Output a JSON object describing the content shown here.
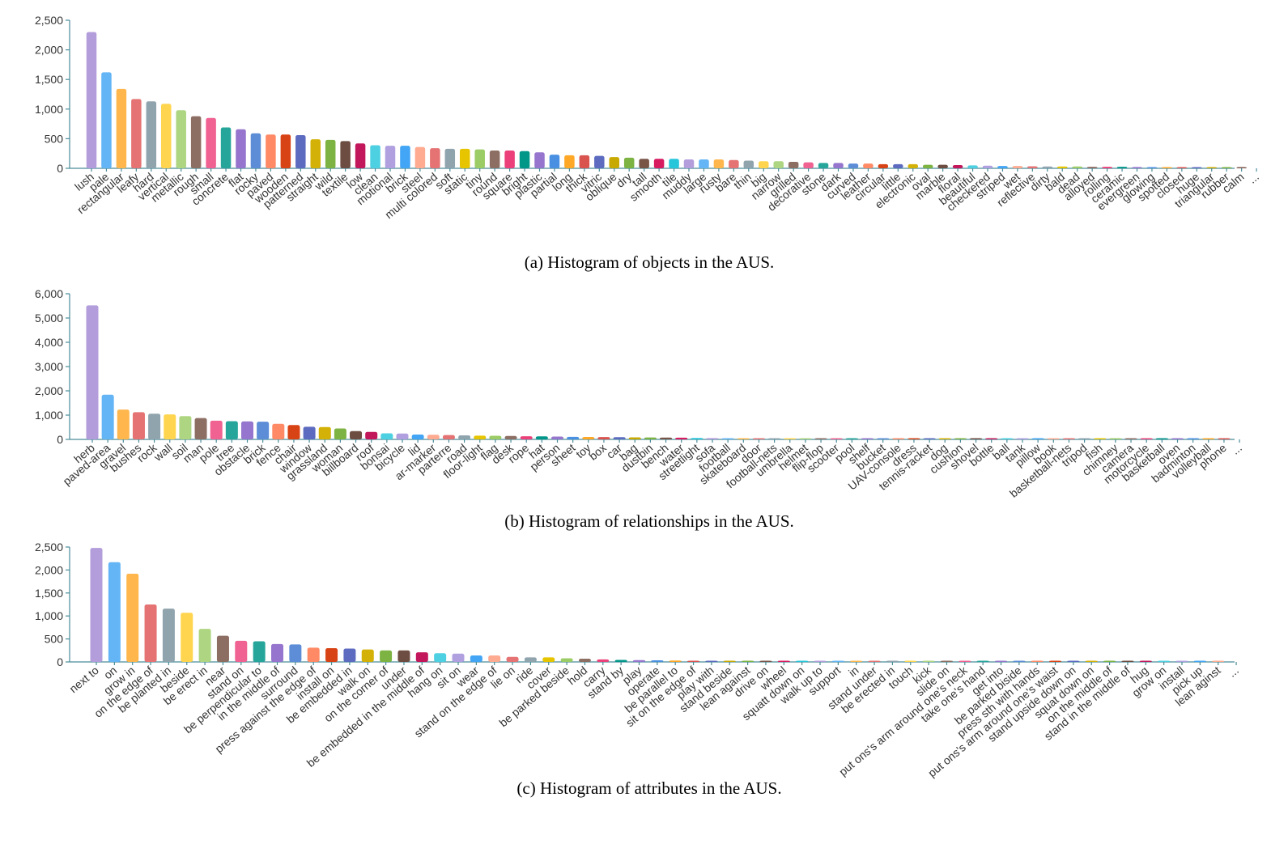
{
  "chart_data": [
    {
      "type": "bar",
      "caption": "(a) Histogram of objects in the AUS.",
      "ylim": [
        0,
        2500
      ],
      "ytick_labels": [
        "0",
        "500",
        "1,000",
        "1,500",
        "2,000",
        "2,500"
      ],
      "categories": [
        "lush",
        "pale",
        "rectangular",
        "leafy",
        "hard",
        "vertical",
        "metallic",
        "rough",
        "small",
        "concrete",
        "flat",
        "rocky",
        "paved",
        "wooden",
        "patterned",
        "straight",
        "wild",
        "textile",
        "low",
        "clean",
        "motional",
        "brick",
        "steel",
        "multi colored",
        "soft",
        "static",
        "tiny",
        "round",
        "square",
        "bright",
        "plastic",
        "partial",
        "long",
        "thick",
        "vitric",
        "oblique",
        "dry",
        "tall",
        "smooth",
        "tile",
        "muddy",
        "large",
        "rusty",
        "bare",
        "thin",
        "big",
        "narrow",
        "grilled",
        "decorative",
        "stone",
        "dark",
        "curved",
        "leather",
        "circular",
        "little",
        "electronic",
        "oval",
        "marble",
        "floral",
        "beautiful",
        "checkered",
        "striped",
        "wet",
        "reflective",
        "dirty",
        "bald",
        "dead",
        "alloyed",
        "rolling",
        "ceramic",
        "evergreen",
        "glowing",
        "spotted",
        "closed",
        "huge",
        "triangular",
        "rubber",
        "calm",
        "..."
      ],
      "values": [
        2300,
        1620,
        1340,
        1170,
        1130,
        1090,
        980,
        880,
        850,
        690,
        660,
        590,
        570,
        570,
        560,
        490,
        480,
        460,
        420,
        390,
        380,
        380,
        360,
        340,
        330,
        330,
        320,
        300,
        300,
        290,
        270,
        230,
        220,
        220,
        210,
        190,
        180,
        160,
        160,
        160,
        150,
        150,
        150,
        140,
        130,
        120,
        120,
        110,
        100,
        90,
        90,
        80,
        80,
        70,
        70,
        70,
        60,
        60,
        55,
        50,
        45,
        40,
        40,
        35,
        30,
        30,
        30,
        25,
        25,
        25,
        22,
        20,
        18,
        16,
        14,
        12,
        10,
        8,
        0
      ]
    },
    {
      "type": "bar",
      "caption": "(b) Histogram of relationships in the AUS.",
      "ylim": [
        0,
        6000
      ],
      "ytick_labels": [
        "0",
        "1,000",
        "2,000",
        "3,000",
        "4,000",
        "5,000",
        "6,000"
      ],
      "categories": [
        "herb",
        "paved-area",
        "gravel",
        "bushes",
        "rock",
        "wall",
        "soil",
        "man",
        "pole",
        "tree",
        "obstacle",
        "brick",
        "fence",
        "chair",
        "window",
        "grassland",
        "woman",
        "billboard",
        "roof",
        "bonsai",
        "bicycle",
        "lid",
        "ar-marker",
        "parterre",
        "road",
        "floor-light",
        "flag",
        "desk",
        "rope",
        "hat",
        "person",
        "sheet",
        "toy",
        "box",
        "car",
        "bag",
        "dustbin",
        "bench",
        "water",
        "streetlight",
        "sofa",
        "football",
        "skateboard",
        "door",
        "football-nets",
        "umbrella",
        "helmet",
        "flip-flop",
        "scooter",
        "pool",
        "shelf",
        "bucket",
        "UAV-console",
        "dress",
        "tennis-racket",
        "dog",
        "cushion",
        "shovel",
        "bottle",
        "ball",
        "tank",
        "pillow",
        "book",
        "basketball-nets",
        "tripod",
        "fish",
        "chimney",
        "camera",
        "motorcycle",
        "basketball",
        "oven",
        "badminton",
        "volleyball",
        "phone",
        "..."
      ],
      "values": [
        5520,
        1840,
        1230,
        1120,
        1060,
        1030,
        960,
        880,
        770,
        750,
        740,
        730,
        640,
        590,
        520,
        510,
        450,
        340,
        310,
        250,
        240,
        200,
        190,
        180,
        165,
        155,
        150,
        140,
        130,
        125,
        115,
        105,
        100,
        95,
        90,
        85,
        80,
        75,
        70,
        60,
        55,
        50,
        45,
        40,
        35,
        30,
        28,
        26,
        24,
        22,
        20,
        18,
        17,
        16,
        15,
        14,
        13,
        12,
        11,
        10,
        9,
        8,
        7,
        6,
        5,
        5,
        4,
        4,
        3,
        3,
        2,
        2,
        2,
        1,
        0
      ]
    },
    {
      "type": "bar",
      "caption": "(c) Histogram of attributes in the AUS.",
      "ylim": [
        0,
        2500
      ],
      "ytick_labels": [
        "0",
        "500",
        "1,000",
        "1,500",
        "2,000",
        "2,500"
      ],
      "categories": [
        "next to",
        "on",
        "grow in",
        "on the edge of",
        "be planted in",
        "beside",
        "be erect in",
        "near",
        "stand on",
        "be perpendicular to",
        "in the middle of",
        "surround",
        "press against the edge of",
        "install on",
        "be embedded in",
        "walk on",
        "on the corner of",
        "under",
        "be embedded in the middle of",
        "hang on",
        "sit on",
        "wear",
        "stand on the edge of",
        "lie on",
        "ride",
        "cover",
        "be parked beside",
        "hold",
        "carry",
        "stand by",
        "play",
        "operate",
        "be parallel to",
        "sit on the edge of",
        "play with",
        "stand beside",
        "lean against",
        "drive on",
        "wheel",
        "squatt down on",
        "walk up to",
        "support",
        "in",
        "stand under",
        "be erected in",
        "touch",
        "kick",
        "slide on",
        "put ons's arm around one's neck",
        "take one's hand",
        "get into",
        "be parked biside",
        "press sth with hands",
        "put ons's arm around one's waist",
        "stand upside down on",
        "squat down on",
        "on the middle of",
        "stand in the middle of",
        "hug",
        "grow on",
        "install",
        "pick up",
        "lean aginst",
        "..."
      ],
      "values": [
        2480,
        2170,
        1920,
        1250,
        1160,
        1070,
        720,
        570,
        460,
        450,
        390,
        380,
        310,
        300,
        290,
        270,
        250,
        250,
        210,
        190,
        180,
        140,
        140,
        110,
        100,
        100,
        80,
        70,
        55,
        45,
        40,
        35,
        30,
        25,
        20,
        18,
        15,
        12,
        10,
        8,
        7,
        6,
        5,
        5,
        4,
        4,
        3,
        3,
        3,
        2,
        2,
        2,
        2,
        1,
        1,
        1,
        1,
        1,
        1,
        1,
        1,
        1,
        1,
        0
      ]
    }
  ],
  "colors": [
    "#b39ddb",
    "#64b5f6",
    "#ffb74d",
    "#e57373",
    "#90a4ae",
    "#ffd54f",
    "#aed581",
    "#8d6e63",
    "#f06292",
    "#26a69a",
    "#9575cd",
    "#5c8dd6",
    "#ff8a65",
    "#d84315",
    "#5c6bc0",
    "#d4b106",
    "#7cb342",
    "#6d4c41",
    "#c2185b",
    "#4dd0e1",
    "#b0a0e0",
    "#42a5f5",
    "#ffab91",
    "#e57373",
    "#90a4ae",
    "#e6c500",
    "#9ccc65",
    "#8d6e63",
    "#ec407a",
    "#009688",
    "#9575cd",
    "#4a90e2",
    "#ffa726",
    "#d9534f",
    "#5c6bc0",
    "#c8a900",
    "#7cb342",
    "#795548",
    "#d81b60",
    "#26c6da"
  ]
}
